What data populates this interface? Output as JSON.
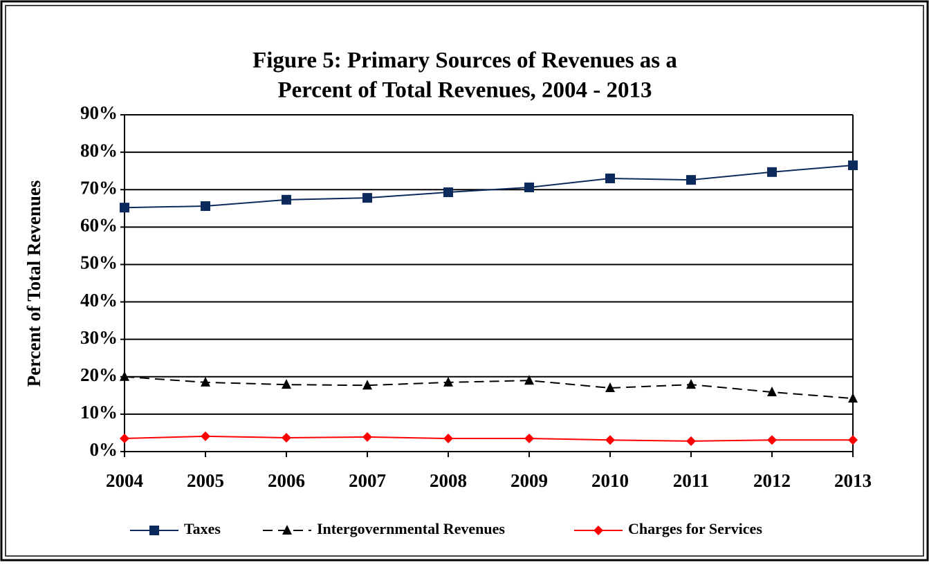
{
  "chart_data": {
    "type": "line",
    "title": [
      "Figure 5:  Primary Sources of Revenues as a",
      "Percent of Total Revenues, 2004 - 2013"
    ],
    "y_label": "Percent of Total Revenues",
    "categories": [
      "2004",
      "2005",
      "2006",
      "2007",
      "2008",
      "2009",
      "2010",
      "2011",
      "2012",
      "2013"
    ],
    "series": [
      {
        "name": "Taxes",
        "color": "#0d2a5c",
        "marker": "square",
        "dashed": false,
        "values": [
          65.2,
          65.6,
          67.3,
          67.8,
          69.3,
          70.6,
          73.0,
          72.6,
          74.7,
          76.5
        ]
      },
      {
        "name": "Intergovernmental Revenues",
        "color": "#000000",
        "marker": "triangle",
        "dashed": true,
        "values": [
          20.0,
          18.5,
          17.9,
          17.7,
          18.5,
          19.0,
          17.0,
          17.9,
          15.9,
          14.2
        ]
      },
      {
        "name": "Charges for Services",
        "color": "#ff0000",
        "marker": "diamond",
        "dashed": false,
        "values": [
          3.5,
          4.1,
          3.7,
          3.9,
          3.5,
          3.5,
          3.1,
          2.8,
          3.1,
          3.1
        ]
      }
    ],
    "ylim": [
      0,
      90
    ],
    "yticks": [
      {
        "value": 0,
        "label": "0%"
      },
      {
        "value": 10,
        "label": "10%"
      },
      {
        "value": 20,
        "label": "20%"
      },
      {
        "value": 30,
        "label": "30%"
      },
      {
        "value": 40,
        "label": "40%"
      },
      {
        "value": 50,
        "label": "50%"
      },
      {
        "value": 60,
        "label": "60%"
      },
      {
        "value": 70,
        "label": "70%"
      },
      {
        "value": 80,
        "label": "80%"
      },
      {
        "value": 90,
        "label": "90%"
      }
    ],
    "grid": true,
    "legend": "bottom"
  }
}
